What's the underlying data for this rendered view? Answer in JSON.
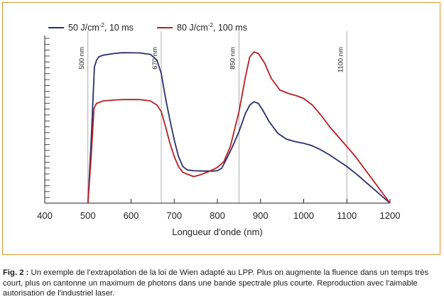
{
  "chart_data": {
    "type": "line",
    "title": "",
    "xlabel": "Longueur d'onde (nm)",
    "ylabel": "",
    "xlim": [
      400,
      1200
    ],
    "xticks": [
      400,
      500,
      600,
      700,
      800,
      900,
      1000,
      1100,
      1200
    ],
    "grid_lines": [
      {
        "x": 500,
        "label": "500 nm"
      },
      {
        "x": 670,
        "label": "670 nm"
      },
      {
        "x": 850,
        "label": "850 nm"
      },
      {
        "x": 1100,
        "label": "1100 nm"
      }
    ],
    "legend_position": "top",
    "series": [
      {
        "name": "50 J/cm",
        "name_sup": "-2",
        "name_suffix": ", 10 ms",
        "color": "#2b2f6b",
        "points": [
          [
            500,
            0
          ],
          [
            508,
            40
          ],
          [
            515,
            82
          ],
          [
            520,
            86
          ],
          [
            525,
            88
          ],
          [
            535,
            89
          ],
          [
            560,
            90
          ],
          [
            580,
            90.5
          ],
          [
            620,
            90.4
          ],
          [
            645,
            89.5
          ],
          [
            660,
            86
          ],
          [
            670,
            78
          ],
          [
            680,
            63
          ],
          [
            690,
            50
          ],
          [
            700,
            38
          ],
          [
            710,
            28
          ],
          [
            720,
            22
          ],
          [
            730,
            20
          ],
          [
            745,
            19.5
          ],
          [
            770,
            19.3
          ],
          [
            790,
            19.3
          ],
          [
            800,
            19.5
          ],
          [
            810,
            21
          ],
          [
            820,
            26
          ],
          [
            835,
            34
          ],
          [
            850,
            43
          ],
          [
            865,
            54
          ],
          [
            875,
            59
          ],
          [
            885,
            61
          ],
          [
            895,
            60
          ],
          [
            905,
            56
          ],
          [
            920,
            49
          ],
          [
            940,
            42
          ],
          [
            960,
            38.5
          ],
          [
            980,
            37
          ],
          [
            1000,
            36
          ],
          [
            1020,
            34.5
          ],
          [
            1040,
            32
          ],
          [
            1060,
            29
          ],
          [
            1080,
            25.5
          ],
          [
            1100,
            22
          ],
          [
            1120,
            18
          ],
          [
            1140,
            13.5
          ],
          [
            1160,
            9
          ],
          [
            1180,
            4.5
          ],
          [
            1200,
            0
          ]
        ]
      },
      {
        "name": "80 J/cm",
        "name_sup": "-2",
        "name_suffix": ", 100 ms",
        "color": "#b52025",
        "points": [
          [
            500,
            0
          ],
          [
            508,
            30
          ],
          [
            514,
            57
          ],
          [
            520,
            60
          ],
          [
            535,
            61.5
          ],
          [
            560,
            62
          ],
          [
            580,
            62.3
          ],
          [
            620,
            62.3
          ],
          [
            645,
            61.5
          ],
          [
            660,
            59
          ],
          [
            670,
            55
          ],
          [
            680,
            46
          ],
          [
            690,
            36
          ],
          [
            700,
            28
          ],
          [
            710,
            22
          ],
          [
            720,
            18.5
          ],
          [
            730,
            17.5
          ],
          [
            745,
            16
          ],
          [
            760,
            17
          ],
          [
            780,
            19
          ],
          [
            800,
            21.5
          ],
          [
            815,
            25
          ],
          [
            830,
            34
          ],
          [
            850,
            55
          ],
          [
            865,
            76
          ],
          [
            875,
            88
          ],
          [
            885,
            91
          ],
          [
            895,
            90
          ],
          [
            910,
            84
          ],
          [
            925,
            75
          ],
          [
            945,
            68
          ],
          [
            965,
            66
          ],
          [
            985,
            64.5
          ],
          [
            1000,
            63
          ],
          [
            1020,
            59
          ],
          [
            1040,
            53
          ],
          [
            1060,
            46
          ],
          [
            1080,
            40
          ],
          [
            1100,
            34
          ],
          [
            1120,
            28
          ],
          [
            1140,
            21
          ],
          [
            1160,
            14
          ],
          [
            1180,
            7
          ],
          [
            1200,
            0
          ]
        ]
      }
    ]
  },
  "caption": {
    "label": "Fig. 2 :",
    "text": " Un exemple de l'extrapolation de la loi de Wien adapté au LPP. Plus on augmente la fluence dans un temps très court, plus on cantonne un maximum de photons dans une bande spectrale plus courte. Reproduction avec l'aimable autorisation de l'industriel laser."
  }
}
